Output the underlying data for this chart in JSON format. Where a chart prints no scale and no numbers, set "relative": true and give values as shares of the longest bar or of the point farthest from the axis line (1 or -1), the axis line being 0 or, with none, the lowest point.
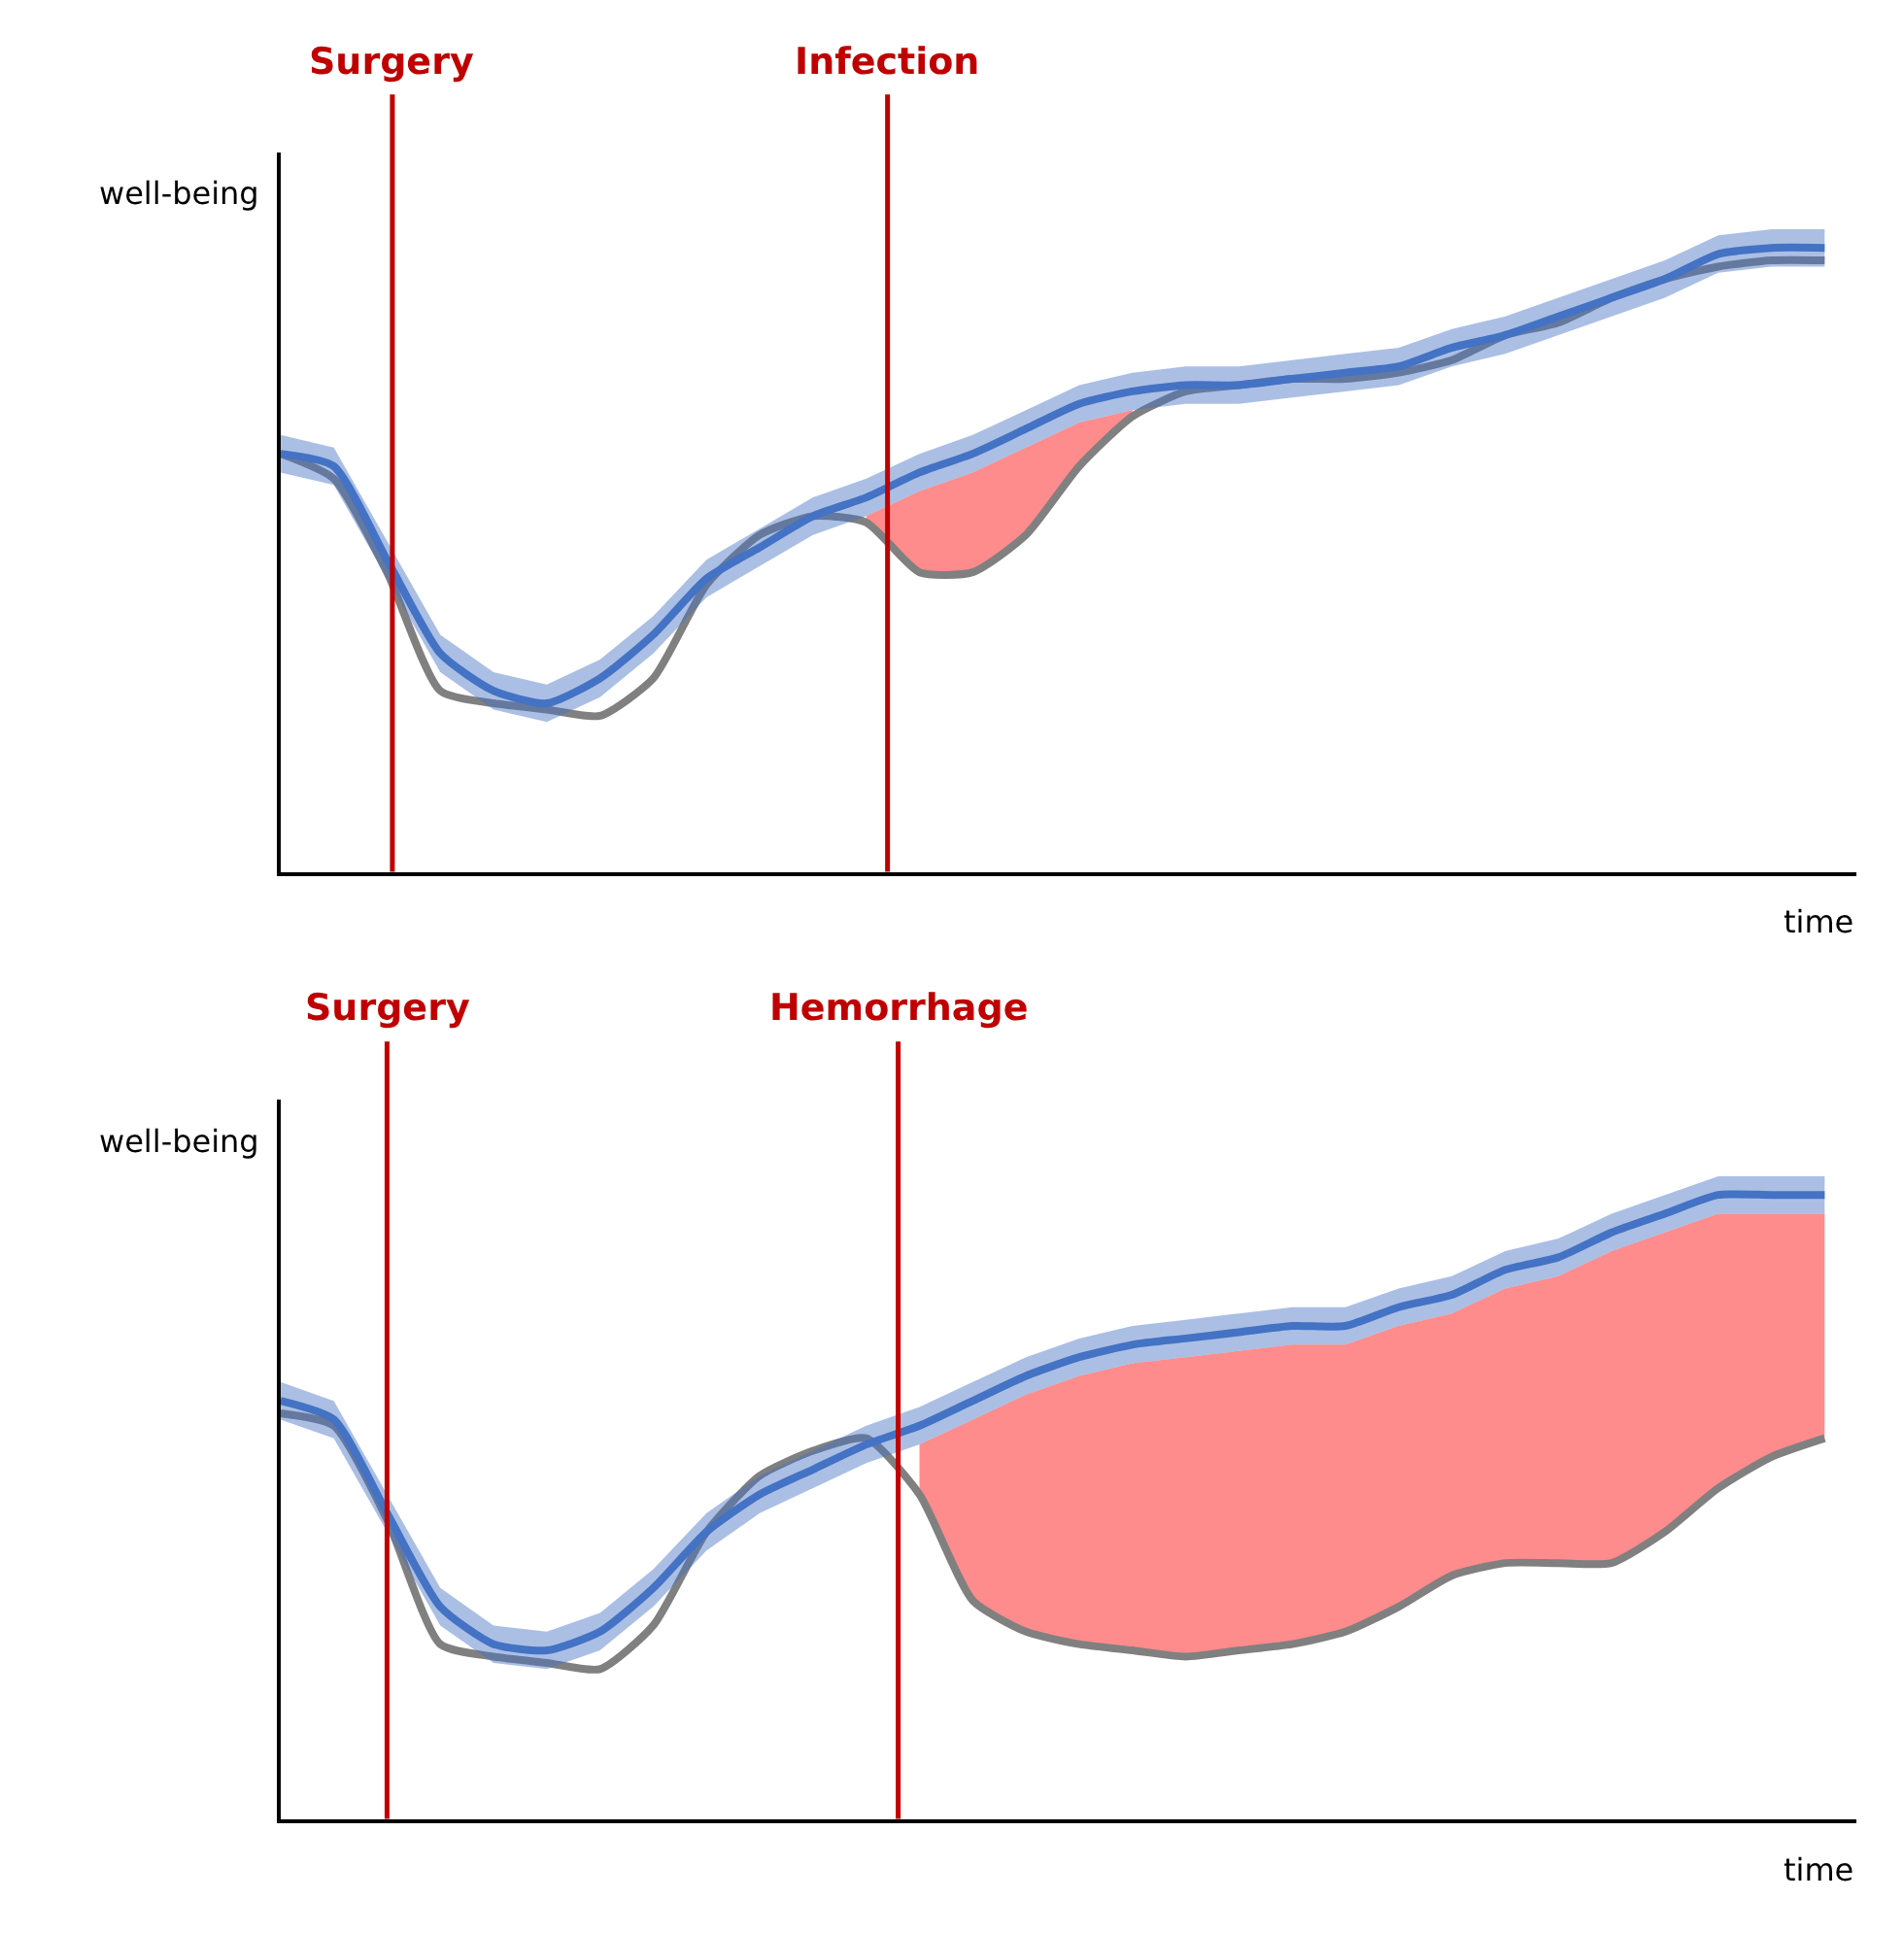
{
  "chart_data": [
    {
      "type": "line",
      "relative": true,
      "ylabel": "well-being",
      "xlabel": "time",
      "tick_labels": false,
      "categories": [
        null,
        null,
        null,
        null,
        null,
        null,
        null,
        null,
        null,
        null,
        null,
        null,
        null,
        null,
        null,
        null,
        null,
        null,
        null,
        null,
        null,
        null,
        null,
        null,
        null,
        null,
        null,
        null,
        null,
        null
      ],
      "series": [
        {
          "color": "#808080",
          "values": [
            0.67,
            0.63,
            0.48,
            0.29,
            0.27,
            0.26,
            0.25,
            0.31,
            0.46,
            0.54,
            0.57,
            0.56,
            0.48,
            0.48,
            0.54,
            0.65,
            0.73,
            0.77,
            0.78,
            0.79,
            0.79,
            0.8,
            0.82,
            0.86,
            0.88,
            0.92,
            0.95,
            0.97,
            0.98,
            0.98
          ]
        },
        {
          "type": "area",
          "color": "#ff8c8c",
          "values": [
            null,
            null,
            null,
            null,
            null,
            null,
            null,
            null,
            null,
            null,
            null,
            0.57,
            0.61,
            0.64,
            0.68,
            0.72,
            0.74,
            null,
            null,
            null,
            null,
            null,
            null,
            null,
            null,
            null,
            null,
            null,
            null,
            null
          ]
        },
        {
          "color": "#4472c4",
          "values": [
            0.67,
            0.65,
            0.5,
            0.35,
            0.29,
            0.27,
            0.31,
            0.38,
            0.47,
            0.52,
            0.57,
            0.6,
            0.64,
            0.67,
            0.71,
            0.75,
            0.77,
            0.78,
            0.78,
            0.79,
            0.8,
            0.81,
            0.84,
            0.86,
            0.89,
            0.92,
            0.95,
            0.99,
            1.0,
            1.0
          ],
          "lower": [
            0.64,
            0.62,
            0.47,
            0.32,
            0.26,
            0.24,
            0.28,
            0.35,
            0.44,
            0.49,
            0.54,
            0.57,
            0.61,
            0.64,
            0.68,
            0.72,
            0.74,
            0.75,
            0.75,
            0.76,
            0.77,
            0.78,
            0.81,
            0.83,
            0.86,
            0.89,
            0.92,
            0.96,
            0.97,
            0.97
          ],
          "upper": [
            0.7,
            0.68,
            0.53,
            0.38,
            0.32,
            0.3,
            0.34,
            0.41,
            0.5,
            0.55,
            0.6,
            0.63,
            0.67,
            0.7,
            0.74,
            0.78,
            0.8,
            0.81,
            0.81,
            0.82,
            0.83,
            0.84,
            0.87,
            0.89,
            0.92,
            0.95,
            0.98,
            1.02,
            1.03,
            1.03
          ]
        }
      ],
      "annotations": [
        "Surgery",
        "Infection"
      ]
    },
    {
      "type": "line",
      "relative": true,
      "ylabel": "well-being",
      "xlabel": "time",
      "tick_labels": false,
      "categories": [
        null,
        null,
        null,
        null,
        null,
        null,
        null,
        null,
        null,
        null,
        null,
        null,
        null,
        null,
        null,
        null,
        null,
        null,
        null,
        null,
        null,
        null,
        null,
        null,
        null,
        null,
        null,
        null,
        null,
        null
      ],
      "series": [
        {
          "color": "#808080",
          "values": [
            0.65,
            0.63,
            0.48,
            0.28,
            0.26,
            0.25,
            0.24,
            0.31,
            0.46,
            0.55,
            0.59,
            0.61,
            0.52,
            0.35,
            0.3,
            0.28,
            0.27,
            0.26,
            0.27,
            0.28,
            0.3,
            0.34,
            0.39,
            0.41,
            0.41,
            0.41,
            0.46,
            0.53,
            0.58,
            0.61
          ]
        },
        {
          "type": "area",
          "color": "#ff8c8c",
          "values": [
            null,
            null,
            null,
            null,
            null,
            null,
            null,
            null,
            null,
            null,
            null,
            null,
            0.6,
            0.64,
            0.68,
            0.71,
            0.73,
            0.74,
            0.75,
            0.76,
            0.76,
            0.79,
            0.81,
            0.85,
            0.87,
            0.91,
            0.94,
            0.97,
            0.97,
            0.97
          ]
        },
        {
          "color": "#4472c4",
          "values": [
            0.67,
            0.64,
            0.49,
            0.34,
            0.28,
            0.27,
            0.3,
            0.37,
            0.46,
            0.52,
            0.56,
            0.6,
            0.63,
            0.67,
            0.71,
            0.74,
            0.76,
            0.77,
            0.78,
            0.79,
            0.79,
            0.82,
            0.84,
            0.88,
            0.9,
            0.94,
            0.97,
            1.0,
            1.0,
            1.0
          ],
          "lower": [
            0.64,
            0.61,
            0.46,
            0.31,
            0.25,
            0.24,
            0.27,
            0.34,
            0.43,
            0.49,
            0.53,
            0.57,
            0.6,
            0.64,
            0.68,
            0.71,
            0.73,
            0.74,
            0.75,
            0.76,
            0.76,
            0.79,
            0.81,
            0.85,
            0.87,
            0.91,
            0.94,
            0.97,
            0.97,
            0.97
          ],
          "upper": [
            0.7,
            0.67,
            0.52,
            0.37,
            0.31,
            0.3,
            0.33,
            0.4,
            0.49,
            0.55,
            0.59,
            0.63,
            0.66,
            0.7,
            0.74,
            0.77,
            0.79,
            0.8,
            0.81,
            0.82,
            0.82,
            0.85,
            0.87,
            0.91,
            0.93,
            0.97,
            1.0,
            1.03,
            1.03,
            1.03
          ]
        }
      ],
      "annotations": [
        "Surgery",
        "Hemorrhage"
      ]
    }
  ]
}
